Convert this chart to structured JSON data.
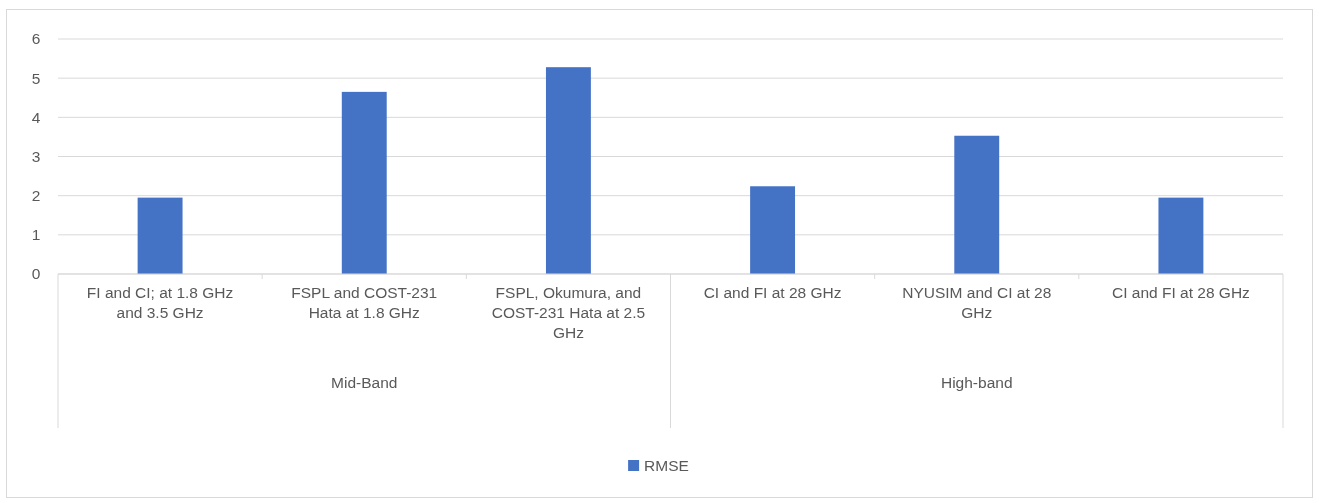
{
  "chart_data": {
    "type": "bar",
    "categories": [
      "FI and CI; at 1.8 GHz and 3.5 GHz",
      "FSPL and COST-231 Hata at 1.8 GHz",
      "FSPL, Okumura, and COST-231 Hata at 2.5 GHz",
      "CI and FI at 28 GHz",
      "NYUSIM and CI at 28 GHz",
      "CI and FI at 28 GHz"
    ],
    "series": [
      {
        "name": "RMSE",
        "color": "#4472c4",
        "values": [
          1.95,
          4.65,
          5.28,
          2.24,
          3.53,
          1.95
        ]
      }
    ],
    "annotations": [
      "Mid-Band",
      "High-band"
    ],
    "ylim": [
      0,
      6
    ],
    "yticks": [
      0,
      1,
      2,
      3,
      4,
      5,
      6
    ],
    "grid": "y",
    "legend": "bottom"
  }
}
